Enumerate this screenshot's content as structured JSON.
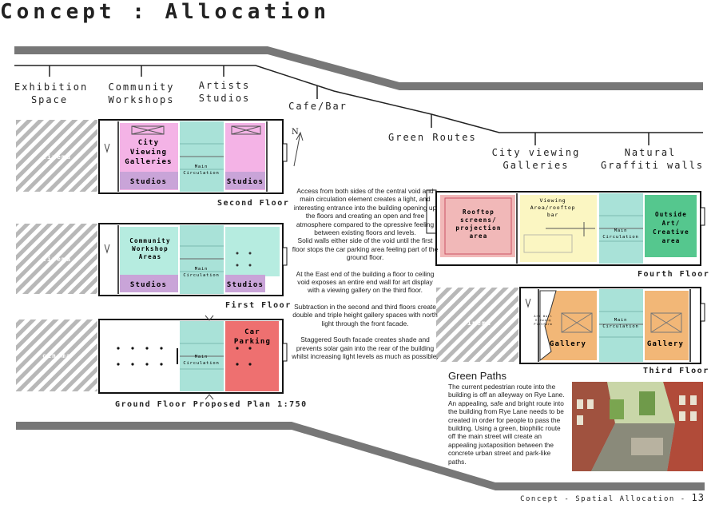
{
  "title": "Concept : Allocation",
  "route_labels": {
    "exhibition": [
      "Exhibition",
      "Space"
    ],
    "community": [
      "Community",
      "Workshops"
    ],
    "artists": [
      "Artists",
      "Studios"
    ],
    "cafe": [
      "Cafe/Bar"
    ],
    "green": [
      "Green Routes"
    ],
    "city": [
      "City viewing",
      "Galleries"
    ],
    "graffiti": [
      "Natural",
      "Graffiti walls"
    ]
  },
  "plans": {
    "second": {
      "label": "Second Floor",
      "cinema": "cinema",
      "west_room": [
        "City",
        "Viewing",
        "Galleries"
      ],
      "studios_west": "Studios",
      "studios_east": "Studios",
      "circulation": [
        "Main",
        "Circulation"
      ]
    },
    "first": {
      "label": "First Floor",
      "cinema": "cinema",
      "west_room": [
        "Community",
        "Workshop",
        "Areas"
      ],
      "studios_west": "Studios",
      "studios_east": "Studios",
      "circulation": [
        "Main",
        "Circulation"
      ]
    },
    "ground": {
      "label": "Ground Floor",
      "proposed": "Proposed Plan 1:750",
      "cinema": "cinema",
      "car_parking": [
        "Car",
        "Parking"
      ],
      "circulation": [
        "Main",
        "Circulation"
      ]
    },
    "fourth": {
      "label": "Fourth Floor",
      "rooftop": [
        "Rooftop",
        "screens/",
        "projection",
        "area"
      ],
      "viewing": [
        "Viewing",
        "Area/rooftop",
        "bar"
      ],
      "circulation": [
        "Main",
        "Circulation"
      ],
      "outside": [
        "Outside",
        "Art/",
        "Creative",
        "area"
      ]
    },
    "third": {
      "label": "Third Floor",
      "cinema": "cinema",
      "gallery_west": "Gallery",
      "gallery_east": "Gallery",
      "circulation": [
        "Main",
        "Circulation"
      ],
      "platform": [
        "Art Wall",
        "Viewing",
        "Platform"
      ]
    }
  },
  "north_label": "N",
  "description": [
    "Access from both sides of the central void and main circulation element creates a light, and interesting entrance into the building opening up the floors and creating an open and free atmosphere compared to the opressive feeling between existing floors and levels.\nSolid walls either side of the void until the first floor stops the car parking area feeling part of the ground floor.",
    "At the East end of the building a floor to ceiling void exposes an entire end wall for art display with a viewing gallery on the third floor.",
    "Subtraction in the second and third floors create double and triple height gallery spaces with north light through the front facade.",
    "Staggered South facade creates shade and prevents solar gain into the rear of the building whilst increasing light levels as much as possible."
  ],
  "green_paths": {
    "title": "Green Paths",
    "body": "The current pedestrian route into the building is off an alleyway on Rye Lane. An appealing, safe and bright route into the building from Rye Lane needs to be created in order for people to pass the building. Using a green, biophilic route off the main street will create an appealing juxtaposition between the concrete urban street and park-like paths."
  },
  "footer": {
    "text": "Concept - Spatial Allocation -",
    "page": "13"
  },
  "colors": {
    "pink": "#f4b3e6",
    "purple": "#c9a4d8",
    "mint": "#b6ece0",
    "teal": "#a9e2d8",
    "red": "#ee7070",
    "orange": "#f2b777",
    "yellow": "#fbf6c2",
    "green": "#55c78e",
    "salmon": "#f1b8b8",
    "band": "#777777"
  }
}
